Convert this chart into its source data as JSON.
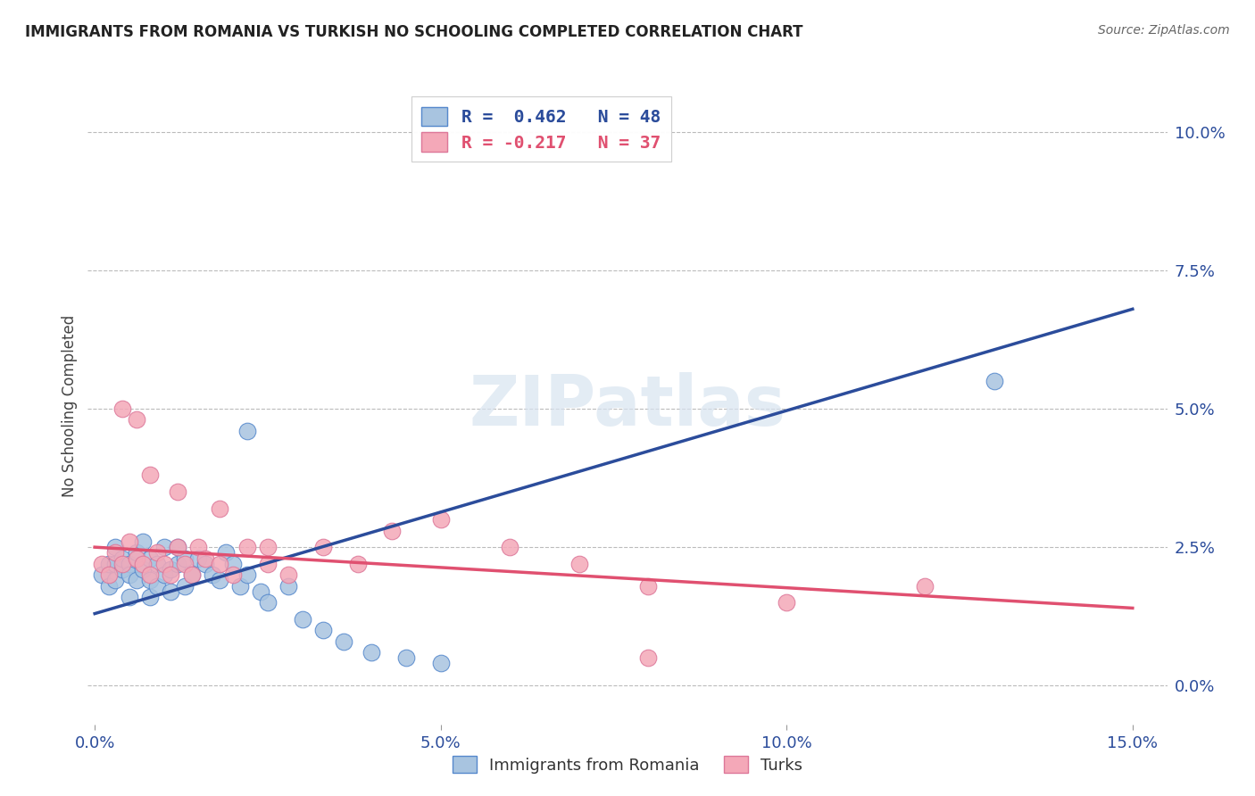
{
  "title": "IMMIGRANTS FROM ROMANIA VS TURKISH NO SCHOOLING COMPLETED CORRELATION CHART",
  "source": "Source: ZipAtlas.com",
  "xlabel_tick_vals": [
    0.0,
    0.05,
    0.1,
    0.15
  ],
  "ylabel": "No Schooling Completed",
  "ylabel_tick_vals": [
    0.0,
    0.025,
    0.05,
    0.075,
    0.1
  ],
  "xlim": [
    -0.001,
    0.155
  ],
  "ylim": [
    -0.007,
    0.108
  ],
  "blue_R": 0.462,
  "blue_N": 48,
  "pink_R": -0.217,
  "pink_N": 37,
  "blue_scatter_color": "#A8C4E0",
  "pink_scatter_color": "#F4A8B8",
  "blue_line_color": "#2B4C9B",
  "pink_line_color": "#E05070",
  "blue_edge_color": "#5588CC",
  "pink_edge_color": "#DD7799",
  "watermark": "ZIPatlas",
  "legend_entries": [
    "Immigrants from Romania",
    "Turks"
  ],
  "blue_line_x0": 0.0,
  "blue_line_y0": 0.013,
  "blue_line_x1": 0.15,
  "blue_line_y1": 0.068,
  "pink_line_x0": 0.0,
  "pink_line_y0": 0.025,
  "pink_line_x1": 0.15,
  "pink_line_y1": 0.014,
  "blue_x": [
    0.001,
    0.002,
    0.002,
    0.003,
    0.003,
    0.003,
    0.004,
    0.004,
    0.005,
    0.005,
    0.005,
    0.006,
    0.006,
    0.007,
    0.007,
    0.008,
    0.008,
    0.008,
    0.009,
    0.009,
    0.01,
    0.01,
    0.011,
    0.011,
    0.012,
    0.012,
    0.013,
    0.013,
    0.014,
    0.015,
    0.016,
    0.017,
    0.018,
    0.019,
    0.02,
    0.021,
    0.022,
    0.024,
    0.025,
    0.028,
    0.03,
    0.033,
    0.036,
    0.04,
    0.045,
    0.05,
    0.13,
    0.022
  ],
  "blue_y": [
    0.02,
    0.022,
    0.018,
    0.025,
    0.019,
    0.022,
    0.021,
    0.023,
    0.022,
    0.02,
    0.016,
    0.024,
    0.019,
    0.026,
    0.021,
    0.023,
    0.019,
    0.016,
    0.022,
    0.018,
    0.025,
    0.02,
    0.021,
    0.017,
    0.025,
    0.022,
    0.023,
    0.018,
    0.02,
    0.023,
    0.022,
    0.02,
    0.019,
    0.024,
    0.022,
    0.018,
    0.02,
    0.017,
    0.015,
    0.018,
    0.012,
    0.01,
    0.008,
    0.006,
    0.005,
    0.004,
    0.055,
    0.046
  ],
  "pink_x": [
    0.001,
    0.002,
    0.003,
    0.004,
    0.005,
    0.006,
    0.007,
    0.008,
    0.009,
    0.01,
    0.011,
    0.012,
    0.013,
    0.014,
    0.015,
    0.016,
    0.018,
    0.02,
    0.022,
    0.025,
    0.028,
    0.033,
    0.038,
    0.043,
    0.05,
    0.06,
    0.07,
    0.08,
    0.1,
    0.12,
    0.004,
    0.006,
    0.008,
    0.012,
    0.018,
    0.025,
    0.08
  ],
  "pink_y": [
    0.022,
    0.02,
    0.024,
    0.022,
    0.026,
    0.023,
    0.022,
    0.02,
    0.024,
    0.022,
    0.02,
    0.025,
    0.022,
    0.02,
    0.025,
    0.023,
    0.022,
    0.02,
    0.025,
    0.022,
    0.02,
    0.025,
    0.022,
    0.028,
    0.03,
    0.025,
    0.022,
    0.018,
    0.015,
    0.018,
    0.05,
    0.048,
    0.038,
    0.035,
    0.032,
    0.025,
    0.005
  ]
}
